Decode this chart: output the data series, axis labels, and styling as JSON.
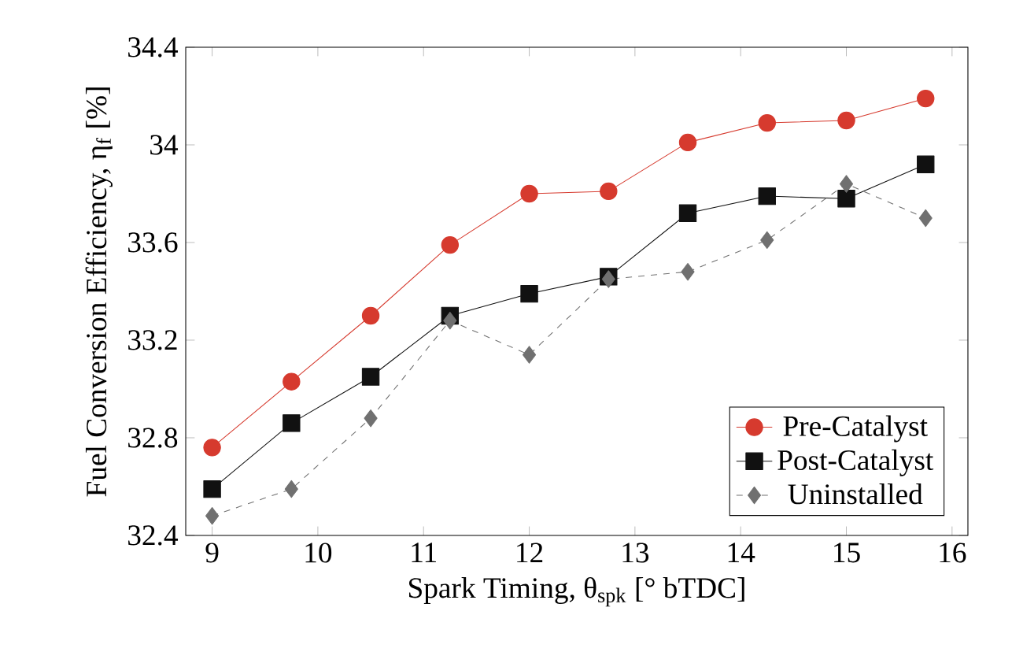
{
  "chart_data": {
    "type": "line",
    "xlabel": "Spark Timing, θ$_{spk}$ [° bTDC]",
    "ylabel": "Fuel Conversion Efficiency, η$_{f}$ [%]",
    "x": [
      9,
      9.75,
      10.5,
      11.25,
      12,
      12.75,
      13.5,
      14.25,
      15,
      15.75
    ],
    "series": [
      {
        "name": "Pre-Catalyst",
        "color": "#d63a2e",
        "marker": "circle",
        "line_style": "solid",
        "values": [
          32.76,
          33.03,
          33.3,
          33.59,
          33.8,
          33.81,
          34.01,
          34.09,
          34.1,
          34.19
        ]
      },
      {
        "name": "Post-Catalyst",
        "color": "#111111",
        "marker": "square",
        "line_style": "solid",
        "values": [
          32.59,
          32.86,
          33.05,
          33.3,
          33.39,
          33.46,
          33.72,
          33.79,
          33.78,
          33.92
        ]
      },
      {
        "name": "Uninstalled",
        "color": "#707070",
        "marker": "diamond",
        "line_style": "dashed",
        "values": [
          32.48,
          32.59,
          32.88,
          33.28,
          33.14,
          33.45,
          33.48,
          33.61,
          33.84,
          33.7
        ]
      }
    ],
    "xlim": [
      8.75,
      16.15
    ],
    "ylim": [
      32.4,
      34.4
    ],
    "xticks": [
      9,
      10,
      11,
      12,
      13,
      14,
      15,
      16
    ],
    "yticks": [
      32.4,
      32.8,
      33.2,
      33.6,
      34,
      34.4
    ],
    "grid": false,
    "legend": "bottom right"
  }
}
